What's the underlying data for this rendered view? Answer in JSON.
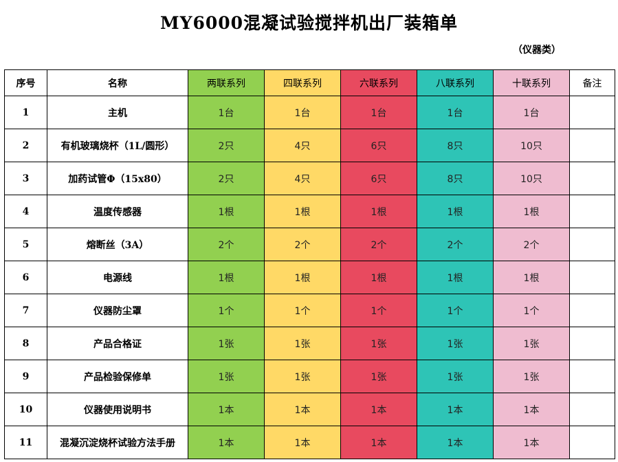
{
  "title": "MY6000混凝试验搅拌机出厂装箱单",
  "subtitle": "（仪器类）",
  "colors": {
    "two": "#92d050",
    "four": "#ffd966",
    "six": "#e84a5f",
    "eight": "#2ec4b6",
    "ten": "#efbcd0"
  },
  "header": {
    "seq": "序号",
    "name": "名称",
    "two": "两联系列",
    "four": "四联系列",
    "six": "六联系列",
    "eight": "八联系列",
    "ten": "十联系列",
    "note": "备注"
  },
  "rows": [
    {
      "seq": "1",
      "name": "主机",
      "two": "1台",
      "four": "1台",
      "six": "1台",
      "eight": "1台",
      "ten": "1台",
      "note": ""
    },
    {
      "seq": "2",
      "name": "有机玻璃烧杯（1L/圆形）",
      "two": "2只",
      "four": "4只",
      "six": "6只",
      "eight": "8只",
      "ten": "10只",
      "note": ""
    },
    {
      "seq": "3",
      "name": "加药试管Φ（15x80）",
      "two": "2只",
      "four": "4只",
      "six": "6只",
      "eight": "8只",
      "ten": "10只",
      "note": ""
    },
    {
      "seq": "4",
      "name": "温度传感器",
      "two": "1根",
      "four": "1根",
      "six": "1根",
      "eight": "1根",
      "ten": "1根",
      "note": ""
    },
    {
      "seq": "5",
      "name": "熔断丝（3A）",
      "two": "2个",
      "four": "2个",
      "six": "2个",
      "eight": "2个",
      "ten": "2个",
      "note": ""
    },
    {
      "seq": "6",
      "name": "电源线",
      "two": "1根",
      "four": "1根",
      "six": "1根",
      "eight": "1根",
      "ten": "1根",
      "note": ""
    },
    {
      "seq": "7",
      "name": "仪器防尘罩",
      "two": "1个",
      "four": "1个",
      "six": "1个",
      "eight": "1个",
      "ten": "1个",
      "note": ""
    },
    {
      "seq": "8",
      "name": "产品合格证",
      "two": "1张",
      "four": "1张",
      "six": "1张",
      "eight": "1张",
      "ten": "1张",
      "note": ""
    },
    {
      "seq": "9",
      "name": "产品检验保修单",
      "two": "1张",
      "four": "1张",
      "six": "1张",
      "eight": "1张",
      "ten": "1张",
      "note": ""
    },
    {
      "seq": "10",
      "name": "仪器使用说明书",
      "two": "1本",
      "four": "1本",
      "six": "1本",
      "eight": "1本",
      "ten": "1本",
      "note": ""
    },
    {
      "seq": "11",
      "name": "混凝沉淀烧杯试验方法手册",
      "two": "1本",
      "four": "1本",
      "six": "1本",
      "eight": "1本",
      "ten": "1本",
      "note": ""
    }
  ]
}
